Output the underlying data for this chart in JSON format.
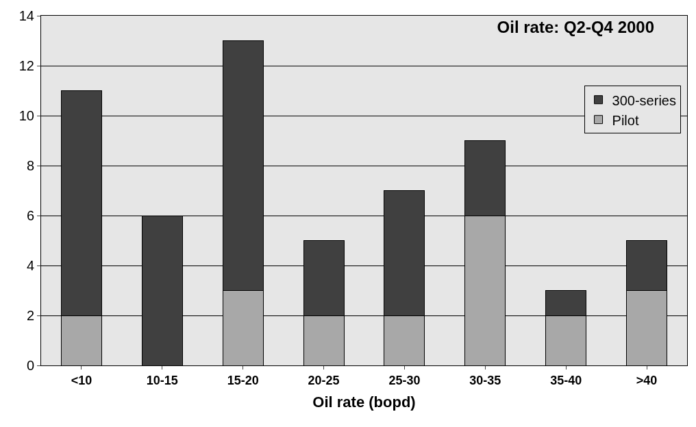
{
  "chart_data": {
    "type": "bar",
    "title": "Oil rate: Q2-Q4 2000",
    "xlabel": "Oil rate (bopd)",
    "categories": [
      "<10",
      "10-15",
      "15-20",
      "20-25",
      "25-30",
      "30-35",
      "35-40",
      ">40"
    ],
    "stacked": true,
    "series": [
      {
        "name": "Pilot",
        "color": "#a8a8a8",
        "values": [
          2,
          0,
          3,
          2,
          2,
          6,
          2,
          3
        ]
      },
      {
        "name": "300-series",
        "color": "#404040",
        "values": [
          9,
          6,
          10,
          3,
          5,
          3,
          1,
          2
        ]
      }
    ],
    "ylim": [
      0,
      14
    ],
    "yticks": [
      0,
      2,
      4,
      6,
      8,
      10,
      12,
      14
    ],
    "grid": "y",
    "legend": "top right"
  }
}
